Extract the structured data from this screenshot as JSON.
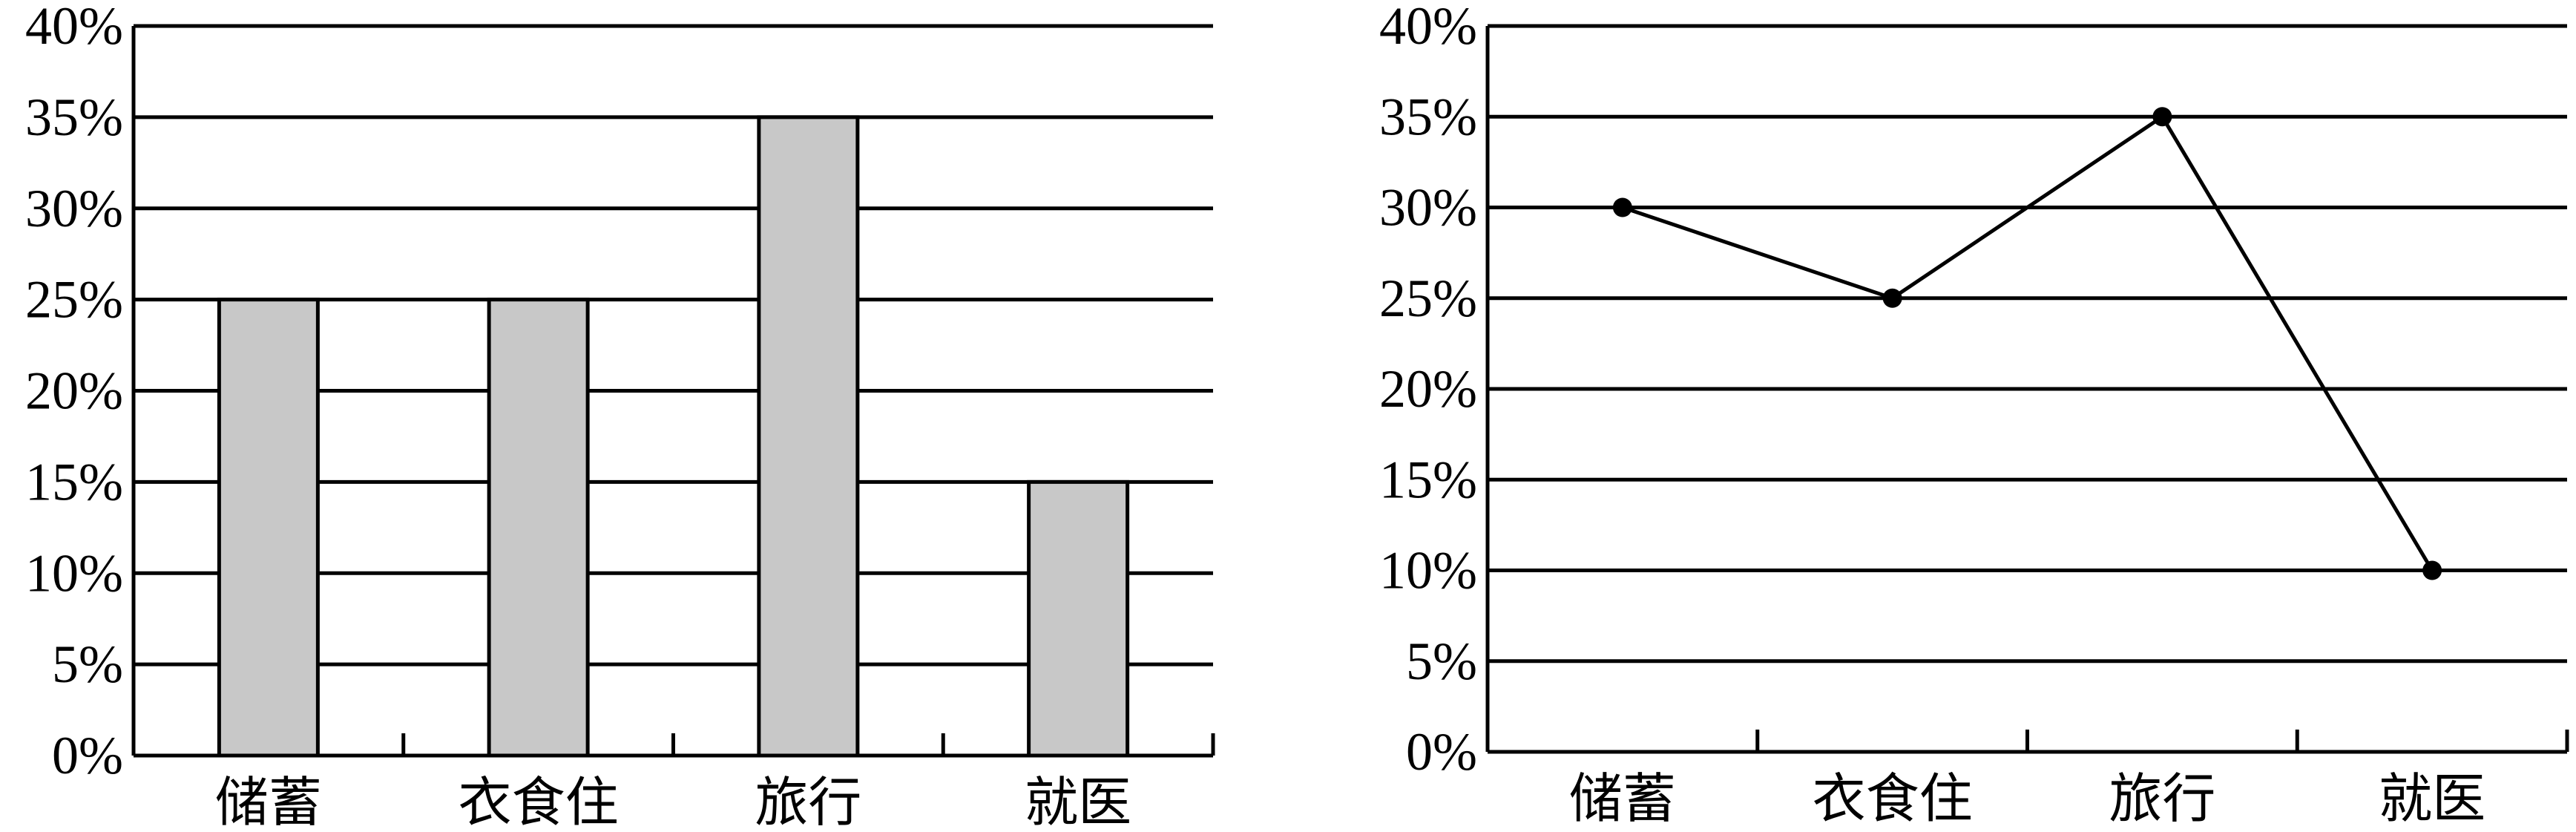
{
  "chart_data": [
    {
      "type": "bar",
      "categories": [
        "储蓄",
        "衣食住",
        "旅行",
        "就医"
      ],
      "values": [
        25,
        25,
        35,
        15
      ],
      "ylim": [
        0,
        40
      ],
      "yticks": [
        "0%",
        "5%",
        "10%",
        "15%",
        "20%",
        "25%",
        "30%",
        "35%",
        "40%"
      ],
      "grid": true,
      "bar_color": "#c8c8c8"
    },
    {
      "type": "line",
      "categories": [
        "储蓄",
        "衣食住",
        "旅行",
        "就医"
      ],
      "values": [
        30,
        25,
        35,
        10
      ],
      "ylim": [
        0,
        40
      ],
      "yticks": [
        "0%",
        "5%",
        "10%",
        "15%",
        "20%",
        "25%",
        "30%",
        "35%",
        "40%"
      ],
      "grid": true,
      "markers": "filled-circle"
    }
  ]
}
